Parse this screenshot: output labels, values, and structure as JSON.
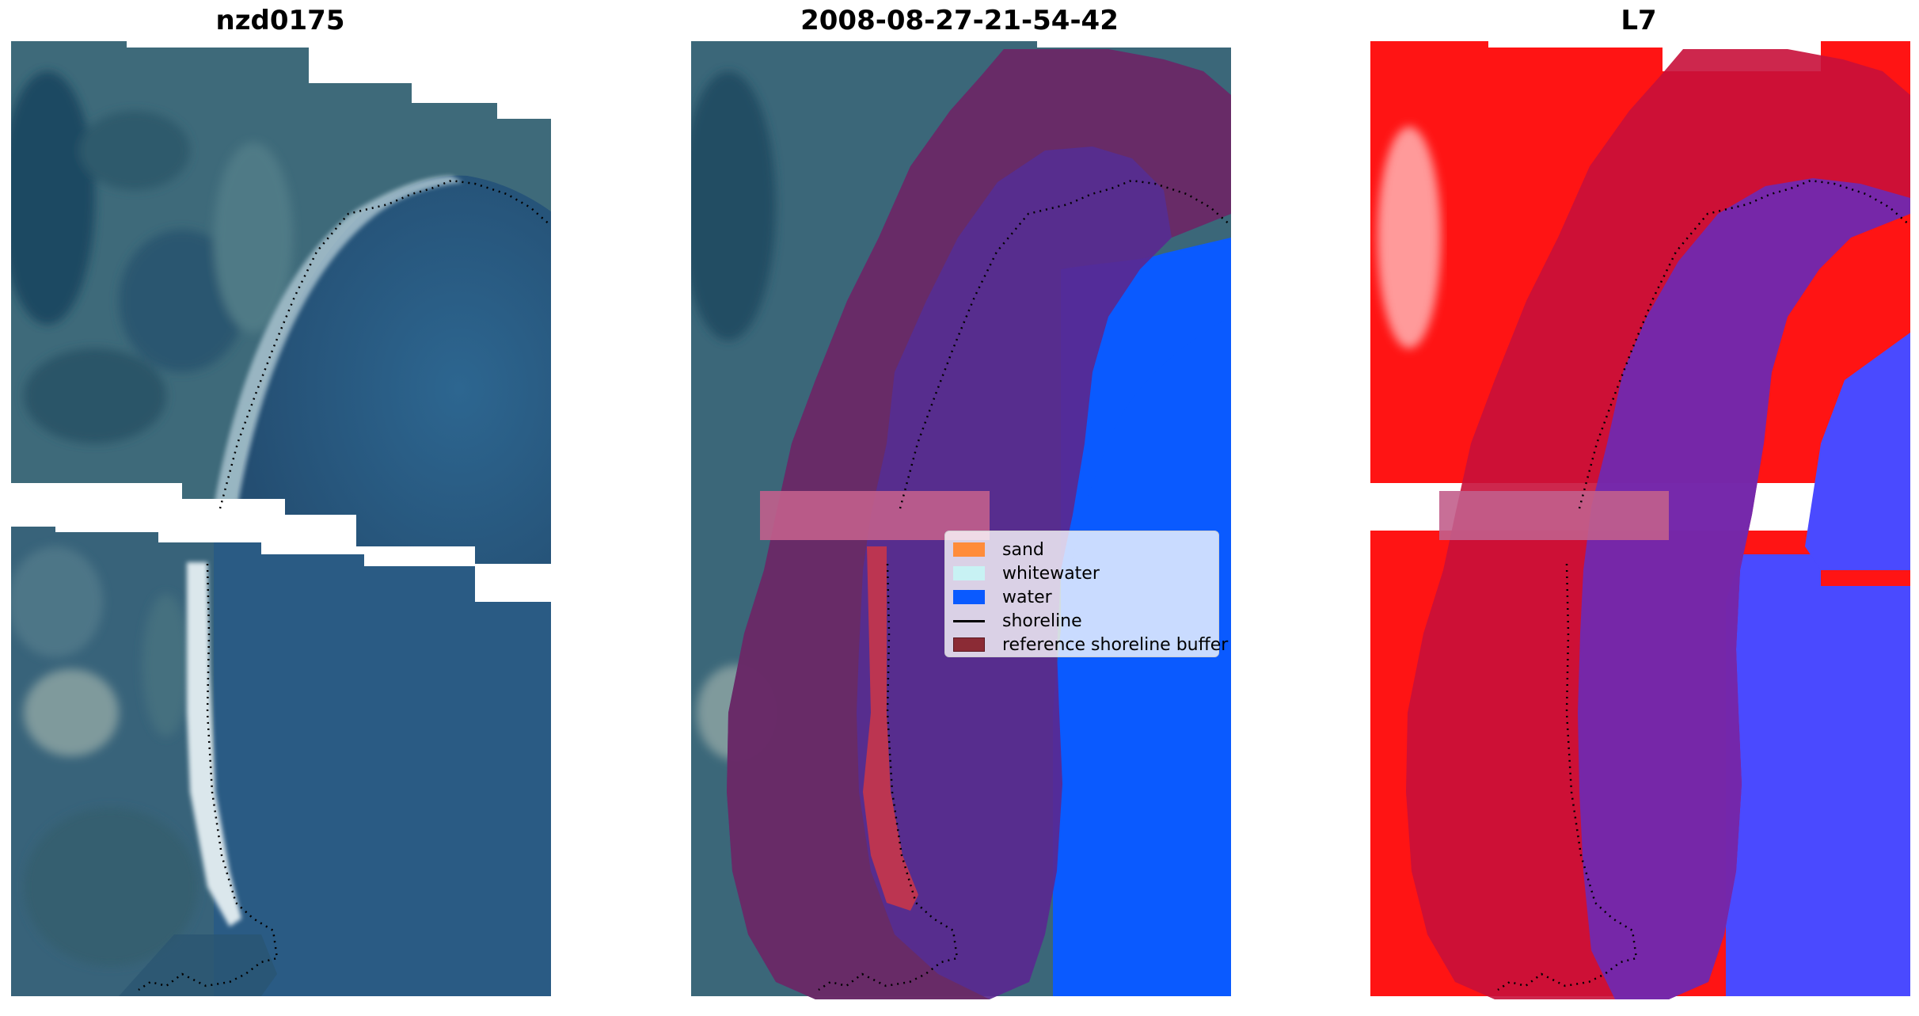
{
  "panels": [
    {
      "title": "nzd0175"
    },
    {
      "title": "2008-08-27-21-54-42"
    },
    {
      "title": "L7"
    }
  ],
  "legend": {
    "items": [
      {
        "label": "sand",
        "color": "#ff8c3a",
        "type": "patch"
      },
      {
        "label": "whitewater",
        "color": "#c8f2f4",
        "type": "patch"
      },
      {
        "label": "water",
        "color": "#0a5aff",
        "type": "patch"
      },
      {
        "label": "shoreline",
        "color": "#000000",
        "type": "line"
      },
      {
        "label": "reference shoreline buffer",
        "color": "#8b2b35",
        "type": "patch"
      }
    ]
  },
  "colors": {
    "rgb_water": "#2c5f86",
    "rgb_land": "#3d6678",
    "rgb_sand": "#e6eef2",
    "class_water": "#0a5aff",
    "class_buffer": "#5a2890",
    "class_buffer_edge": "#c5608e",
    "class_sand": "#c8364a",
    "index_land": "#ff1a1a",
    "index_water": "#4a4aff",
    "index_buffer_land": "#c8103a",
    "index_buffer_water": "#6a2ab8"
  }
}
